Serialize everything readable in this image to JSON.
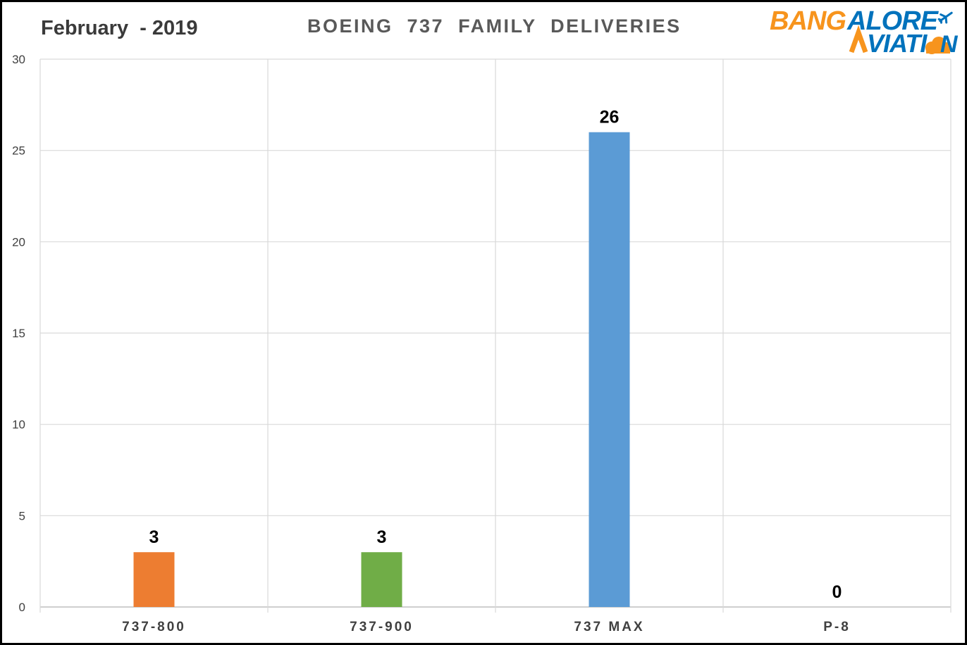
{
  "subtitle": "February  - 2019",
  "logo": {
    "line1": "BANGALORE",
    "line2": "VIATION",
    "colors": {
      "orange": "#F7941D",
      "blue": "#0072BC"
    }
  },
  "chart_data": {
    "type": "bar",
    "title": "BOEING  737  FAMILY  DELIVERIES",
    "categories": [
      "737-800",
      "737-900",
      "737 MAX",
      "P-8"
    ],
    "values": [
      3,
      3,
      26,
      0
    ],
    "colors": [
      "#ED7D31",
      "#70AD47",
      "#5B9BD5",
      "#A5A5A5"
    ],
    "ylim": [
      0,
      30
    ],
    "yticks": [
      0,
      5,
      10,
      15,
      20,
      25,
      30
    ],
    "grid": true,
    "legend": "none",
    "data_labels": true
  }
}
